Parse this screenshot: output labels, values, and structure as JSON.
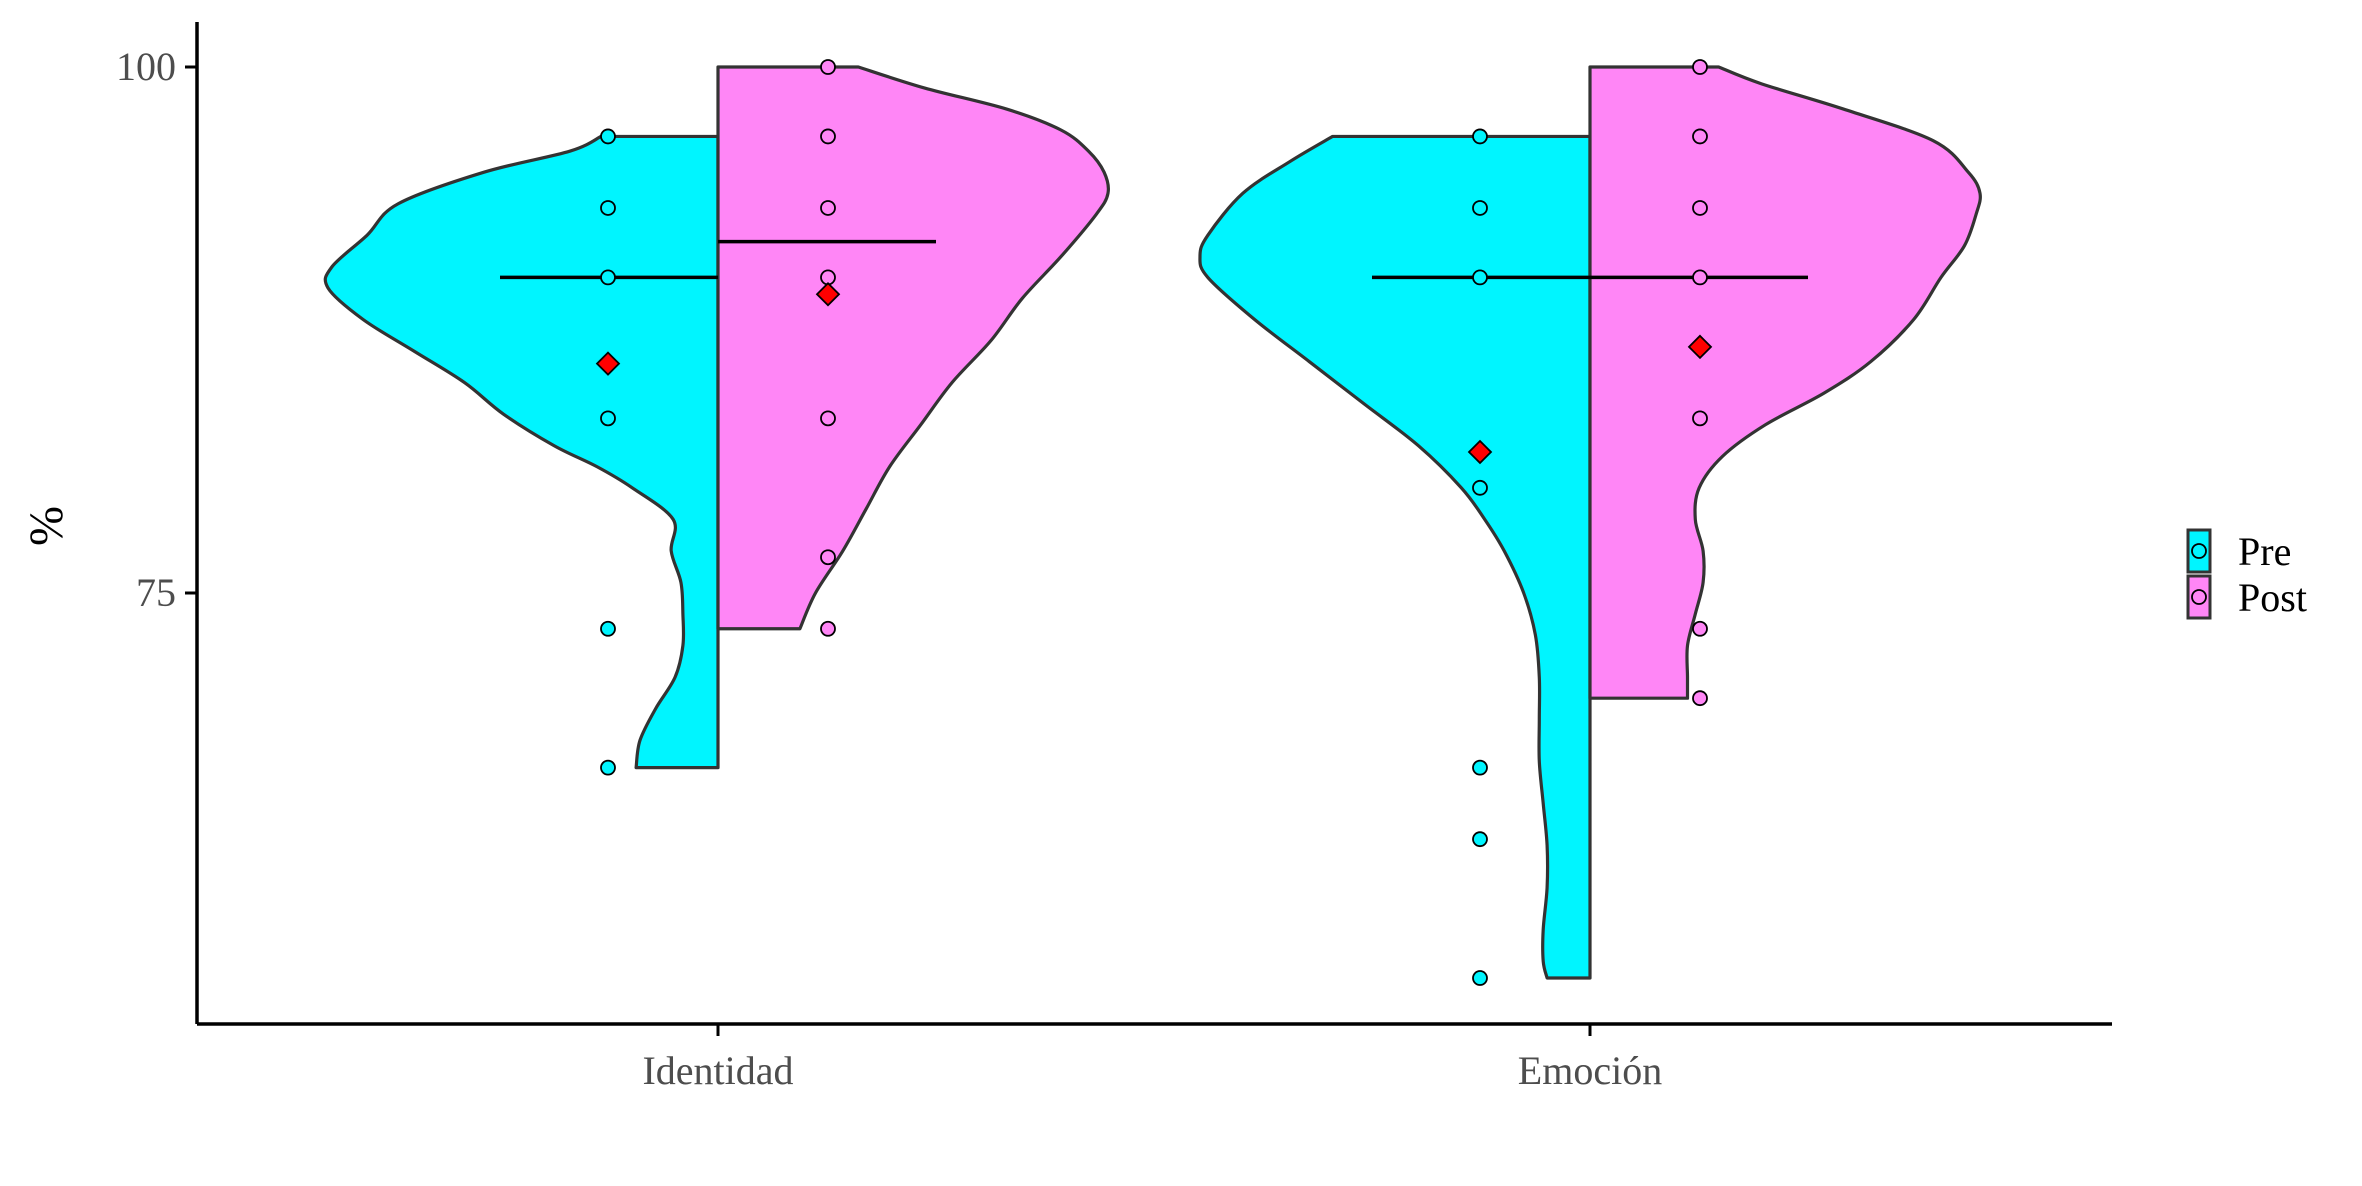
{
  "chart_data": {
    "type": "violin",
    "title": "",
    "xlabel": "",
    "ylabel": "%",
    "ylim": [
      56.5,
      102.5
    ],
    "y_ticks": [
      75,
      100
    ],
    "y_tick_labels": [
      "75",
      "100"
    ],
    "categories": [
      "Identidad",
      "Emoción"
    ],
    "grid": false,
    "legend_position": "right",
    "series": [
      {
        "name": "Pre",
        "color": "#00F5FF",
        "side": "left",
        "groups": [
          {
            "category": "Identidad",
            "median": 90,
            "mean": 85.9,
            "min": 66.7,
            "max": 96.7,
            "points": [
              96.7,
              93.3,
              90,
              83.3,
              73.3,
              66.7
            ],
            "density": [
              [
                66.7,
                0.21
              ],
              [
                68,
                0.2
              ],
              [
                69.5,
                0.16
              ],
              [
                71,
                0.11
              ],
              [
                72.5,
                0.09
              ],
              [
                74,
                0.09
              ],
              [
                75.5,
                0.095
              ],
              [
                77,
                0.12
              ],
              [
                78.5,
                0.115
              ],
              [
                80,
                0.22
              ],
              [
                81,
                0.31
              ],
              [
                82,
                0.42
              ],
              [
                83.5,
                0.55
              ],
              [
                85,
                0.65
              ],
              [
                86.5,
                0.78
              ],
              [
                88,
                0.91
              ],
              [
                89.5,
                1.0
              ],
              [
                90.5,
                0.99
              ],
              [
                92,
                0.9
              ],
              [
                93.5,
                0.82
              ],
              [
                95,
                0.6
              ],
              [
                96,
                0.38
              ],
              [
                96.7,
                0.3
              ]
            ]
          },
          {
            "category": "Emoción",
            "median": 90,
            "mean": 81.7,
            "min": 56.7,
            "max": 96.7,
            "points": [
              96.7,
              93.3,
              90,
              80,
              66.7,
              63.3,
              56.7
            ],
            "density": [
              [
                56.7,
                0.11
              ],
              [
                57.5,
                0.12
              ],
              [
                59,
                0.12
              ],
              [
                61,
                0.11
              ],
              [
                63,
                0.11
              ],
              [
                65,
                0.12
              ],
              [
                67,
                0.13
              ],
              [
                69,
                0.13
              ],
              [
                71,
                0.13
              ],
              [
                73,
                0.14
              ],
              [
                75,
                0.17
              ],
              [
                77,
                0.22
              ],
              [
                78.5,
                0.27
              ],
              [
                80,
                0.33
              ],
              [
                82,
                0.44
              ],
              [
                84,
                0.58
              ],
              [
                86,
                0.72
              ],
              [
                88,
                0.86
              ],
              [
                90,
                0.98
              ],
              [
                91,
                1.0
              ],
              [
                92,
                0.98
              ],
              [
                94,
                0.89
              ],
              [
                95.5,
                0.77
              ],
              [
                96.7,
                0.66
              ]
            ]
          }
        ]
      },
      {
        "name": "Post",
        "color": "#FF86F6",
        "side": "right",
        "groups": [
          {
            "category": "Identidad",
            "median": 91.7,
            "mean": 89.2,
            "min": 73.3,
            "max": 100,
            "points": [
              100,
              96.7,
              93.3,
              90,
              83.3,
              76.7,
              73.3
            ],
            "density": [
              [
                73.3,
                0.21
              ],
              [
                75,
                0.25
              ],
              [
                77,
                0.32
              ],
              [
                79,
                0.38
              ],
              [
                81,
                0.44
              ],
              [
                83,
                0.52
              ],
              [
                85,
                0.6
              ],
              [
                87,
                0.7
              ],
              [
                89,
                0.78
              ],
              [
                91,
                0.88
              ],
              [
                93,
                0.97
              ],
              [
                94,
                1.0
              ],
              [
                95,
                0.99
              ],
              [
                96,
                0.95
              ],
              [
                97,
                0.88
              ],
              [
                98,
                0.74
              ],
              [
                99,
                0.53
              ],
              [
                100,
                0.36
              ]
            ]
          },
          {
            "category": "Emoción",
            "median": 90,
            "mean": 86.7,
            "min": 70,
            "max": 100,
            "points": [
              100,
              96.7,
              93.3,
              90,
              83.3,
              73.3,
              70
            ],
            "density": [
              [
                70,
                0.25
              ],
              [
                71,
                0.25
              ],
              [
                72.5,
                0.25
              ],
              [
                74,
                0.27
              ],
              [
                75.5,
                0.29
              ],
              [
                77,
                0.29
              ],
              [
                78.5,
                0.27
              ],
              [
                80,
                0.28
              ],
              [
                81.5,
                0.34
              ],
              [
                83,
                0.45
              ],
              [
                84.5,
                0.6
              ],
              [
                86,
                0.72
              ],
              [
                88,
                0.83
              ],
              [
                90,
                0.9
              ],
              [
                91.5,
                0.96
              ],
              [
                93,
                0.99
              ],
              [
                94,
                1.0
              ],
              [
                95,
                0.97
              ],
              [
                96.5,
                0.88
              ],
              [
                98,
                0.65
              ],
              [
                99.2,
                0.44
              ],
              [
                100,
                0.33
              ]
            ]
          }
        ]
      }
    ],
    "mean_marker": {
      "shape": "diamond",
      "color": "#FF0000"
    }
  }
}
